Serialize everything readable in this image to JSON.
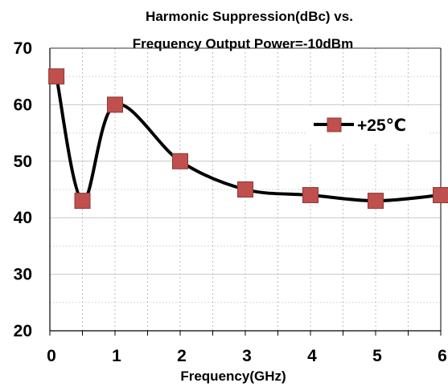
{
  "chart_data": {
    "type": "line",
    "title_line1": "Harmonic Suppression(dBc)  vs.",
    "title_line2": "Frequency Output Power=-10dBm",
    "xlabel": "Frequency(GHz)",
    "ylabel": "",
    "xlim": [
      0,
      6
    ],
    "ylim": [
      20,
      70
    ],
    "x_ticks": [
      0,
      1,
      2,
      3,
      4,
      5,
      6
    ],
    "y_ticks": [
      20,
      30,
      40,
      50,
      60,
      70
    ],
    "x_tick_labels": [
      "0",
      "1",
      "2",
      "3",
      "4",
      "5",
      "6"
    ],
    "y_tick_labels": [
      "20",
      "30",
      "40",
      "50",
      "60",
      "70"
    ],
    "grid": true,
    "legend_position": "right",
    "series": [
      {
        "name": "+25℃",
        "color": "#000000",
        "marker_color": "#c0504d",
        "x": [
          0.1,
          0.5,
          1,
          2,
          3,
          4,
          5,
          6
        ],
        "y": [
          65,
          43,
          60,
          50,
          45,
          44,
          43,
          44
        ]
      }
    ]
  }
}
